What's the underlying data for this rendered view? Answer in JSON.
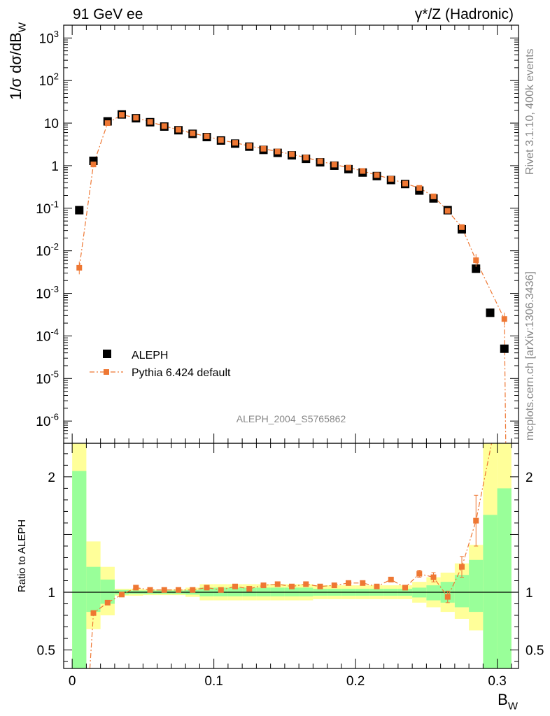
{
  "header": {
    "left": "91 GeV ee",
    "right": "γ*/Z (Hadronic)"
  },
  "side_labels": {
    "rivet": "Rivet 3.1.10,  400k events",
    "mcplots": "mcplots.cern.ch [arXiv:1306.3436]"
  },
  "analysis_id": "ALEPH_2004_S5765862",
  "colors": {
    "data": "#000000",
    "mc": "#ee7733",
    "band_inner": "#99ff99",
    "band_outer": "#ffff99"
  },
  "chart_data": [
    {
      "type": "scatter",
      "yscale": "log",
      "ylabel": "1/σ  dσ/dB_W",
      "xlim": [
        -0.006,
        0.315
      ],
      "ylim": [
        3e-07,
        2000
      ],
      "y_ticks": [
        {
          "value": 1000,
          "label": "10^3"
        },
        {
          "value": 100,
          "label": "10^2"
        },
        {
          "value": 10,
          "label": "10"
        },
        {
          "value": 1,
          "label": "1"
        },
        {
          "value": 0.1,
          "label": "10^-1"
        },
        {
          "value": 0.01,
          "label": "10^-2"
        },
        {
          "value": 0.001,
          "label": "10^-3"
        },
        {
          "value": 0.0001,
          "label": "10^-4"
        },
        {
          "value": 1e-05,
          "label": "10^-5"
        },
        {
          "value": 1e-06,
          "label": "10^-6"
        }
      ],
      "x": [
        0.005,
        0.015,
        0.025,
        0.035,
        0.045,
        0.055,
        0.065,
        0.075,
        0.085,
        0.095,
        0.105,
        0.115,
        0.125,
        0.135,
        0.145,
        0.155,
        0.165,
        0.175,
        0.185,
        0.195,
        0.205,
        0.215,
        0.225,
        0.235,
        0.245,
        0.255,
        0.265,
        0.275,
        0.285,
        0.295,
        0.305
      ],
      "legend": {
        "position": "bottom-left"
      },
      "series": [
        {
          "name": "ALEPH",
          "values": [
            0.09,
            1.3,
            11,
            16,
            13,
            10.5,
            8.3,
            6.8,
            5.6,
            4.7,
            3.9,
            3.3,
            2.8,
            2.35,
            2.0,
            1.75,
            1.45,
            1.2,
            1.0,
            0.83,
            0.69,
            0.57,
            0.46,
            0.37,
            0.26,
            0.17,
            0.09,
            0.032,
            0.0038,
            0.00035,
            5e-05
          ]
        },
        {
          "name": "Pythia 6.424 default",
          "values": [
            0.004,
            1.07,
            10.0,
            15.7,
            13.4,
            10.7,
            8.5,
            7.0,
            5.75,
            4.9,
            4.0,
            3.45,
            2.9,
            2.5,
            2.15,
            1.85,
            1.55,
            1.27,
            1.06,
            0.9,
            0.75,
            0.6,
            0.49,
            0.38,
            0.3,
            0.19,
            0.087,
            0.036,
            0.006,
            null,
            0.00025
          ]
        }
      ]
    },
    {
      "type": "scatter",
      "ylabel": "Ratio to ALEPH",
      "xlabel": "B_W",
      "xlim": [
        -0.006,
        0.315
      ],
      "ylim": [
        0.34,
        2.29
      ],
      "x_ticks": [
        {
          "value": 0,
          "label": "0"
        },
        {
          "value": 0.1,
          "label": "0.1"
        },
        {
          "value": 0.2,
          "label": "0.2"
        },
        {
          "value": 0.3,
          "label": "0.3"
        }
      ],
      "y_ticks": [
        {
          "value": 0.5,
          "label": "0.5"
        },
        {
          "value": 1,
          "label": "1"
        },
        {
          "value": 2,
          "label": "2"
        }
      ],
      "bins": [
        [
          0.0,
          0.01
        ],
        [
          0.01,
          0.02
        ],
        [
          0.02,
          0.03
        ],
        [
          0.03,
          0.04
        ],
        [
          0.04,
          0.05
        ],
        [
          0.05,
          0.06
        ],
        [
          0.06,
          0.07
        ],
        [
          0.07,
          0.08
        ],
        [
          0.08,
          0.09
        ],
        [
          0.09,
          0.1
        ],
        [
          0.1,
          0.11
        ],
        [
          0.11,
          0.12
        ],
        [
          0.12,
          0.13
        ],
        [
          0.13,
          0.14
        ],
        [
          0.14,
          0.15
        ],
        [
          0.15,
          0.16
        ],
        [
          0.16,
          0.17
        ],
        [
          0.17,
          0.18
        ],
        [
          0.18,
          0.19
        ],
        [
          0.19,
          0.2
        ],
        [
          0.2,
          0.21
        ],
        [
          0.21,
          0.22
        ],
        [
          0.22,
          0.23
        ],
        [
          0.23,
          0.24
        ],
        [
          0.24,
          0.25
        ],
        [
          0.25,
          0.26
        ],
        [
          0.26,
          0.27
        ],
        [
          0.27,
          0.28
        ],
        [
          0.28,
          0.29
        ],
        [
          0.29,
          0.3
        ],
        [
          0.3,
          0.31
        ]
      ],
      "band_inner": [
        [
          0.2,
          2.05
        ],
        [
          0.83,
          1.22
        ],
        [
          0.9,
          1.11
        ],
        [
          0.98,
          1.02
        ],
        [
          0.985,
          1.015
        ],
        [
          0.985,
          1.015
        ],
        [
          0.985,
          1.015
        ],
        [
          0.985,
          1.015
        ],
        [
          0.98,
          1.02
        ],
        [
          0.965,
          1.04
        ],
        [
          0.965,
          1.04
        ],
        [
          0.965,
          1.04
        ],
        [
          0.965,
          1.04
        ],
        [
          0.965,
          1.04
        ],
        [
          0.965,
          1.04
        ],
        [
          0.965,
          1.04
        ],
        [
          0.965,
          1.04
        ],
        [
          0.97,
          1.03
        ],
        [
          0.97,
          1.03
        ],
        [
          0.97,
          1.03
        ],
        [
          0.97,
          1.03
        ],
        [
          0.97,
          1.03
        ],
        [
          0.97,
          1.03
        ],
        [
          0.97,
          1.03
        ],
        [
          0.955,
          1.04
        ],
        [
          0.93,
          1.06
        ],
        [
          0.91,
          1.09
        ],
        [
          0.87,
          1.15
        ],
        [
          0.83,
          1.28
        ],
        [
          0.3,
          1.67
        ],
        [
          0.3,
          1.9
        ]
      ],
      "band_outer": [
        [
          0.2,
          2.3
        ],
        [
          0.68,
          1.44
        ],
        [
          0.8,
          1.22
        ],
        [
          0.97,
          1.03
        ],
        [
          0.97,
          1.03
        ],
        [
          0.975,
          1.025
        ],
        [
          0.975,
          1.025
        ],
        [
          0.975,
          1.025
        ],
        [
          0.96,
          1.04
        ],
        [
          0.93,
          1.07
        ],
        [
          0.93,
          1.07
        ],
        [
          0.93,
          1.07
        ],
        [
          0.93,
          1.07
        ],
        [
          0.93,
          1.07
        ],
        [
          0.93,
          1.07
        ],
        [
          0.93,
          1.07
        ],
        [
          0.93,
          1.07
        ],
        [
          0.94,
          1.06
        ],
        [
          0.94,
          1.06
        ],
        [
          0.94,
          1.06
        ],
        [
          0.94,
          1.06
        ],
        [
          0.94,
          1.06
        ],
        [
          0.94,
          1.06
        ],
        [
          0.94,
          1.06
        ],
        [
          0.91,
          1.09
        ],
        [
          0.87,
          1.13
        ],
        [
          0.83,
          1.17
        ],
        [
          0.77,
          1.25
        ],
        [
          0.67,
          1.41
        ],
        [
          0.3,
          2.3
        ],
        [
          0.3,
          2.3
        ]
      ],
      "ratio_x": [
        0.015,
        0.025,
        0.035,
        0.045,
        0.055,
        0.065,
        0.075,
        0.085,
        0.095,
        0.105,
        0.115,
        0.125,
        0.135,
        0.145,
        0.155,
        0.165,
        0.175,
        0.185,
        0.195,
        0.205,
        0.215,
        0.225,
        0.235,
        0.245,
        0.255,
        0.265,
        0.275,
        0.285
      ],
      "ratio_values": [
        0.82,
        0.91,
        0.98,
        1.04,
        1.02,
        1.02,
        1.02,
        1.02,
        1.04,
        1.02,
        1.05,
        1.03,
        1.06,
        1.07,
        1.05,
        1.07,
        1.05,
        1.06,
        1.08,
        1.08,
        1.05,
        1.11,
        1.04,
        1.16,
        1.13,
        0.96,
        1.22,
        1.62
      ],
      "ratio_errors": [
        0.0,
        0.0,
        0.0,
        0.0,
        0.0,
        0.0,
        0.0,
        0.0,
        0.0,
        0.0,
        0.0,
        0.0,
        0.0,
        0.0,
        0.0,
        0.0,
        0.0,
        0.0,
        0.02,
        0.0,
        0.0,
        0.02,
        0.02,
        0.03,
        0.04,
        0.05,
        0.09,
        0.22
      ]
    }
  ]
}
